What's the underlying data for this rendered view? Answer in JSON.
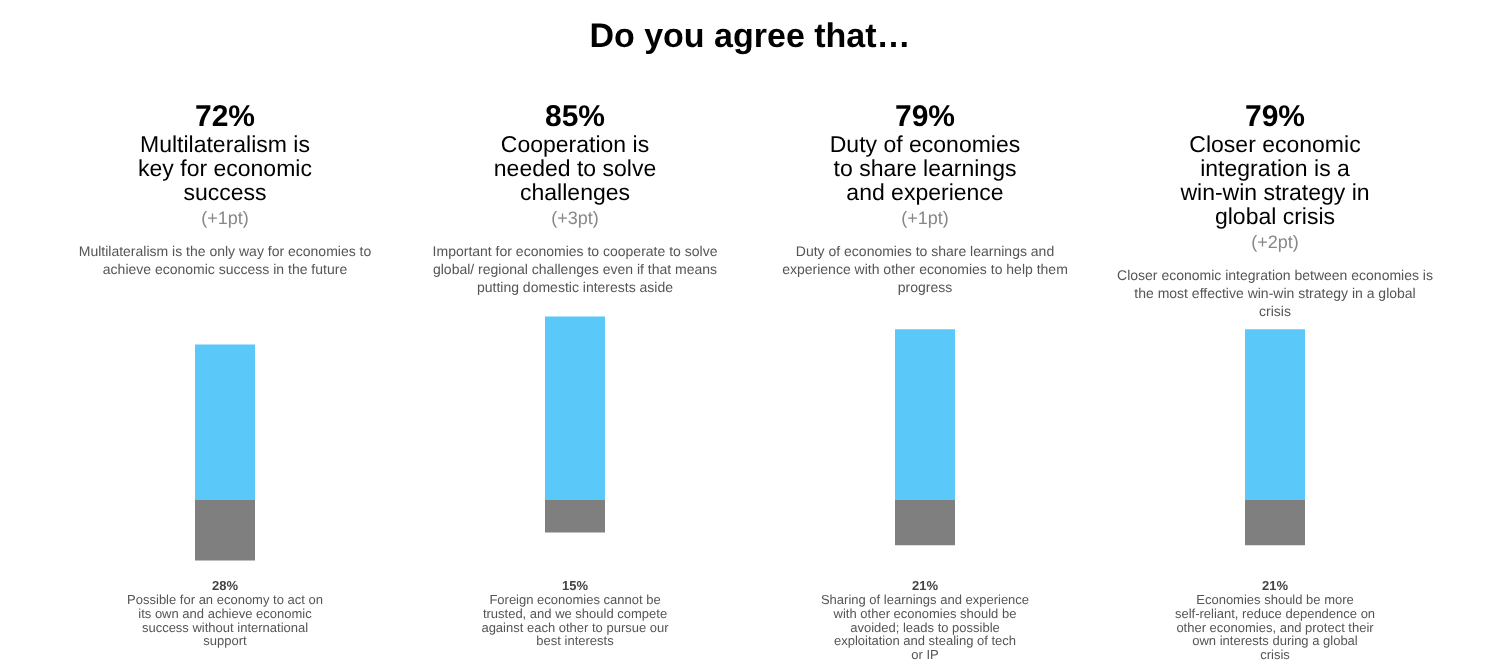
{
  "chart_data": {
    "type": "bar",
    "title": "Do you agree that…",
    "categories": [
      "Multilateralism is key for economic success",
      "Cooperation is needed to solve challenges",
      "Duty of economies to share learnings and experience",
      "Closer economic integration is a win-win strategy in global crisis"
    ],
    "stacked": true,
    "series": [
      {
        "color": "#5bc8fa",
        "values": [
          72,
          85,
          79,
          79
        ],
        "value_labels": [
          "72%",
          "85%",
          "79%",
          "79%"
        ]
      },
      {
        "color": "#7f7f7f",
        "values": [
          -28,
          -15,
          -21,
          -21
        ]
      }
    ],
    "annotations": [
      "(+1pt)",
      "(+3pt)",
      "(+1pt)",
      "(+2pt)",
      "Multilateralism is the only way for economies to achieve economic success in the future",
      "Important for economies to cooperate to solve global/ regional challenges even if that means putting domestic interests aside",
      "Duty of economies to share learnings and experience with other economies to help them progress",
      "Closer economic integration between economies is the most effective win-win strategy in a global crisis",
      "28%",
      "15%",
      "21%",
      "21%",
      "Possible for an economy to act on its own and achieve economic success without international support",
      "Foreign economies cannot be trusted, and we should compete against each other to pursue our best interests",
      "Sharing of learnings and experience with other economies should be avoided; leads to possible exploitation and stealing of tech or IP",
      "Economies should be more self-reliant, reduce dependence on other economies, and protect their own interests during a global crisis"
    ]
  }
}
